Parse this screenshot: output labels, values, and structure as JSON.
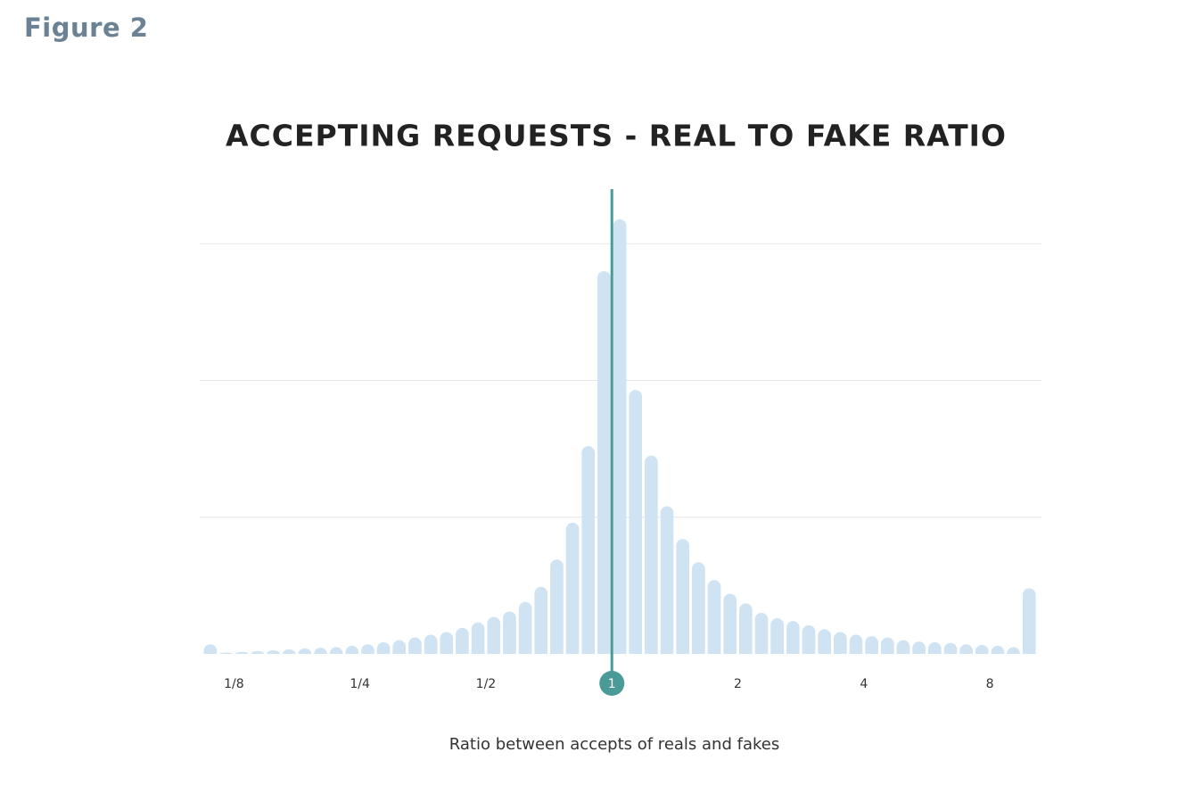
{
  "figure_label": "Figure 2",
  "chart_data": {
    "type": "histogram",
    "title": "ACCEPTING REQUESTS - REAL TO FAKE RATIO",
    "x_label": "Ratio between accepts of reals and fakes",
    "x_scale": "log2",
    "bins": [
      0.1051,
      0.1146,
      0.125,
      0.1363,
      0.1487,
      0.1621,
      0.1768,
      0.1928,
      0.2102,
      0.2293,
      0.25,
      0.2726,
      0.2973,
      0.3242,
      0.3536,
      0.3856,
      0.4204,
      0.4585,
      0.5,
      0.5453,
      0.5946,
      0.6484,
      0.7071,
      0.7711,
      0.8409,
      0.917,
      1,
      1.0905,
      1.1892,
      1.2968,
      1.4142,
      1.5422,
      1.6818,
      1.834,
      2,
      2.181,
      2.378,
      2.594,
      2.828,
      3.084,
      3.364,
      3.668,
      4,
      4.362,
      4.757,
      5.187,
      5.657,
      6.169,
      6.727,
      7.336,
      8,
      8.724,
      9.514,
      10.37
    ],
    "counts": [
      0.07,
      0.01,
      0.015,
      0.02,
      0.026,
      0.033,
      0.04,
      0.045,
      0.05,
      0.06,
      0.07,
      0.085,
      0.1,
      0.12,
      0.14,
      0.16,
      0.19,
      0.23,
      0.27,
      0.31,
      0.38,
      0.49,
      0.69,
      0.96,
      1.52,
      2.8,
      3.18,
      1.93,
      1.45,
      1.08,
      0.84,
      0.67,
      0.54,
      0.44,
      0.37,
      0.3,
      0.26,
      0.24,
      0.21,
      0.18,
      0.16,
      0.14,
      0.13,
      0.12,
      0.1,
      0.09,
      0.085,
      0.08,
      0.07,
      0.065,
      0.06,
      0.05,
      0.48
    ],
    "color": "#cfe3f3",
    "xlim": [
      0.1051,
      10.37
    ],
    "xticks": [
      {
        "value": 0.125,
        "label": "1/8"
      },
      {
        "value": 0.25,
        "label": "1/4"
      },
      {
        "value": 0.5,
        "label": "1/2"
      },
      1,
      2,
      4,
      8
    ],
    "ylim": [
      0,
      3.4
    ],
    "grid_y": [
      1,
      2,
      3
    ],
    "highlight_x": 1,
    "highlight_color": "#4a9a97"
  }
}
